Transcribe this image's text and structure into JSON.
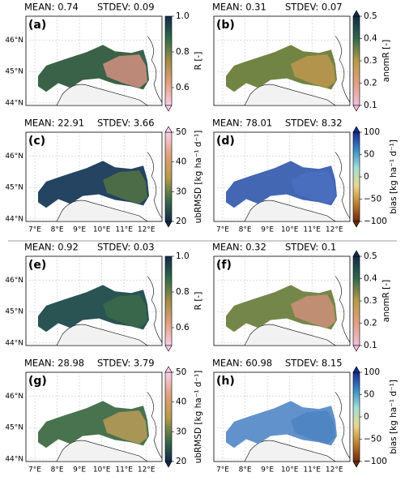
{
  "lat_ticks": [
    {
      "value": 46,
      "label": "46°N"
    },
    {
      "value": 45,
      "label": "45°N"
    },
    {
      "value": 44,
      "label": "44°N"
    }
  ],
  "lat_lim": [
    43.92,
    46.76
  ],
  "lon_ticks": [
    {
      "value": 7,
      "label": "7°E"
    },
    {
      "value": 8,
      "label": "8°E"
    },
    {
      "value": 9,
      "label": "9°E"
    },
    {
      "value": 10,
      "label": "10°E"
    },
    {
      "value": 11,
      "label": "11°E"
    },
    {
      "value": 12,
      "label": "12°E"
    }
  ],
  "lon_lim": [
    6.6,
    12.7
  ],
  "panels": [
    {
      "label": "(a)",
      "mean": "MEAN: 0.74",
      "stdev": "STDEV: 0.09",
      "fill": "#2f5a3f",
      "accent": "#e8978a",
      "colorbar": {
        "label": "R [-]",
        "lim": [
          0.5,
          1
        ],
        "ticks": [
          {
            "value": 1,
            "label": "1.0"
          },
          0.8,
          0.6
        ],
        "colors": [
          "#142a4a",
          "#2f6a4a",
          "#a08c48",
          "#e0a080",
          "#f8d0e8"
        ],
        "extend": "min"
      }
    },
    {
      "label": "(b)",
      "mean": "MEAN: 0.31",
      "stdev": "STDEV: 0.07",
      "fill": "#6a7d3a",
      "accent": "#c99a50",
      "colorbar": {
        "label": "anomR [-]",
        "lim": [
          0.1,
          0.5
        ],
        "ticks": [
          0.5,
          0.4,
          0.3,
          0.2,
          0.1
        ],
        "colors": [
          "#142a4a",
          "#2f6a4a",
          "#b99a4a",
          "#e0a080",
          "#f0c0e0"
        ],
        "extend": "both"
      }
    },
    {
      "label": "(c)",
      "mean": "MEAN: 22.91",
      "stdev": "STDEV: 3.66",
      "fill": "#183a5a",
      "accent": "#5a7a40",
      "colorbar": {
        "label": "ubRMSD [kg ha⁻¹ d⁻¹]",
        "lim": [
          20,
          50
        ],
        "ticks": [
          50,
          40,
          30,
          20
        ],
        "colors": [
          "#fad0e8",
          "#e0a080",
          "#b99a4a",
          "#3f6e4a",
          "#142a4a"
        ],
        "extend": "both"
      }
    },
    {
      "label": "(d)",
      "mean": "MEAN: 78.01",
      "stdev": "STDEV: 8.32",
      "fill": "#3a5fb0",
      "accent": "#4a70c0",
      "colorbar": {
        "label": "bias [kg ha⁻¹ d⁻¹]",
        "lim": [
          -100,
          100
        ],
        "ticks": [
          100,
          50,
          0,
          {
            "value": -50,
            "label": "−50"
          },
          {
            "value": -100,
            "label": "−100"
          }
        ],
        "colors": [
          "#1a2a8a",
          "#3a8ac8",
          "#a0e0d8",
          "#e8d890",
          "#c08030",
          "#6a2a0a"
        ],
        "extend": "both"
      }
    },
    {
      "label": "(e)",
      "mean": "MEAN: 0.92",
      "stdev": "STDEV: 0.03",
      "fill": "#1f4a4a",
      "accent": "#3f6e4a",
      "colorbar": {
        "label": "R [-]",
        "lim": [
          0.5,
          1
        ],
        "ticks": [
          {
            "value": 1,
            "label": "1.0"
          },
          0.8,
          0.6
        ],
        "colors": [
          "#142a4a",
          "#2f6a4a",
          "#a08c48",
          "#e0a080",
          "#f8d0e8"
        ],
        "extend": "min"
      }
    },
    {
      "label": "(f)",
      "mean": "MEAN: 0.32",
      "stdev": "STDEV: 0.1",
      "fill": "#6d8040",
      "accent": "#d99080",
      "colorbar": {
        "label": "anomR [-]",
        "lim": [
          0.1,
          0.5
        ],
        "ticks": [
          0.5,
          0.4,
          0.3,
          0.2,
          0.1
        ],
        "colors": [
          "#142a4a",
          "#2f6a4a",
          "#b99a4a",
          "#e0a080",
          "#f0c0e0"
        ],
        "extend": "both"
      }
    },
    {
      "label": "(g)",
      "mean": "MEAN: 28.98",
      "stdev": "STDEV: 3.79",
      "fill": "#3f6a45",
      "accent": "#c9a25a",
      "colorbar": {
        "label": "ubRMSD [kg ha⁻¹ d⁻¹]",
        "lim": [
          20,
          50
        ],
        "ticks": [
          50,
          40,
          30,
          20
        ],
        "colors": [
          "#fad0e8",
          "#e0a080",
          "#b99a4a",
          "#3f6e4a",
          "#142a4a"
        ],
        "extend": "both"
      }
    },
    {
      "label": "(h)",
      "mean": "MEAN: 60.98",
      "stdev": "STDEV: 8.15",
      "fill": "#5a8cc8",
      "accent": "#4a80c0",
      "colorbar": {
        "label": "bias [kg ha⁻¹ d⁻¹]",
        "lim": [
          -100,
          100
        ],
        "ticks": [
          100,
          50,
          0,
          {
            "value": -50,
            "label": "−50"
          },
          {
            "value": -100,
            "label": "−100"
          }
        ],
        "colors": [
          "#1a2a8a",
          "#3a8ac8",
          "#a0e0d8",
          "#e8d890",
          "#c08030",
          "#6a2a0a"
        ],
        "extend": "both"
      }
    }
  ]
}
